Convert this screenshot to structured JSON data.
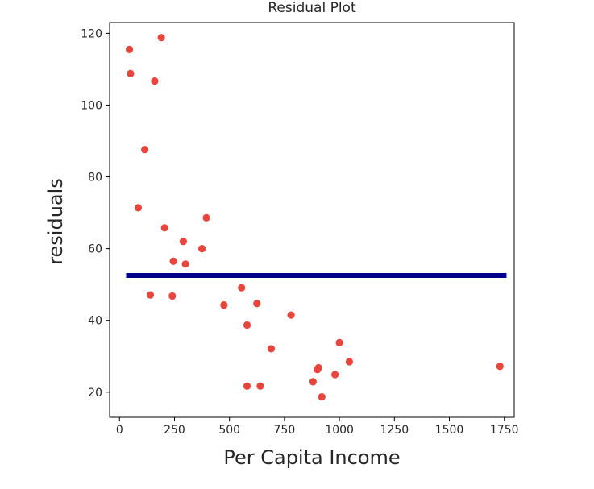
{
  "chart_data": {
    "type": "scatter",
    "title": "Residual Plot",
    "xlabel": "Per Capita Income",
    "ylabel": "residuals",
    "xlim": [
      -45,
      1795
    ],
    "ylim": [
      13,
      123
    ],
    "xticks": [
      0,
      250,
      500,
      750,
      1000,
      1250,
      1500,
      1750
    ],
    "yticks": [
      20,
      40,
      60,
      80,
      100,
      120
    ],
    "grid": false,
    "point_color": "#e8453c",
    "line_color": "#00008b",
    "points": [
      {
        "x": 45,
        "y": 115.5
      },
      {
        "x": 50,
        "y": 108.8
      },
      {
        "x": 160,
        "y": 106.7
      },
      {
        "x": 190,
        "y": 118.8
      },
      {
        "x": 115,
        "y": 87.6
      },
      {
        "x": 85,
        "y": 71.4
      },
      {
        "x": 205,
        "y": 65.8
      },
      {
        "x": 290,
        "y": 62.0
      },
      {
        "x": 395,
        "y": 68.6
      },
      {
        "x": 375,
        "y": 60.0
      },
      {
        "x": 245,
        "y": 56.5
      },
      {
        "x": 300,
        "y": 55.7
      },
      {
        "x": 140,
        "y": 47.1
      },
      {
        "x": 240,
        "y": 46.8
      },
      {
        "x": 555,
        "y": 49.1
      },
      {
        "x": 475,
        "y": 44.3
      },
      {
        "x": 625,
        "y": 44.7
      },
      {
        "x": 580,
        "y": 38.7
      },
      {
        "x": 780,
        "y": 41.5
      },
      {
        "x": 690,
        "y": 32.1
      },
      {
        "x": 1000,
        "y": 33.8
      },
      {
        "x": 1045,
        "y": 28.5
      },
      {
        "x": 1730,
        "y": 27.2
      },
      {
        "x": 900,
        "y": 26.3
      },
      {
        "x": 905,
        "y": 26.8
      },
      {
        "x": 880,
        "y": 22.9
      },
      {
        "x": 980,
        "y": 24.9
      },
      {
        "x": 580,
        "y": 21.7
      },
      {
        "x": 640,
        "y": 21.7
      },
      {
        "x": 920,
        "y": 18.7
      }
    ],
    "hline": {
      "y": 52.5,
      "x_start": 30,
      "x_end": 1760
    }
  }
}
